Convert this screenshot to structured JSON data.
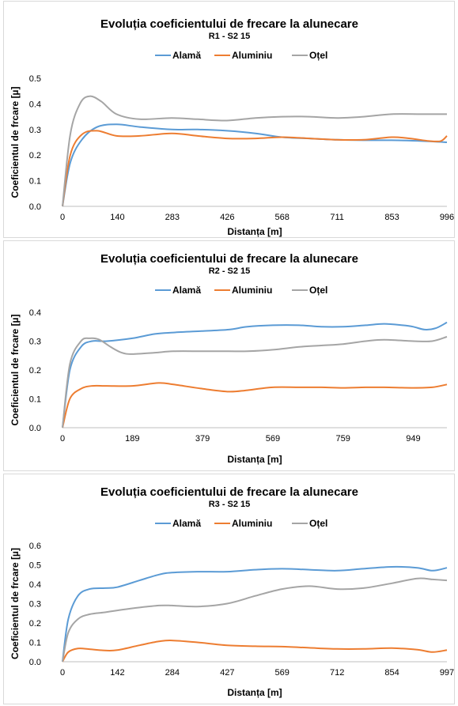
{
  "colors": {
    "alama": "#5b9bd5",
    "aluminiu": "#ed7d31",
    "otel": "#a5a5a5"
  },
  "chart_data": [
    {
      "type": "line",
      "title": "Evoluția coeficientului de frecare la alunecare",
      "subtitle": "R1 - S2 15",
      "xlabel": "Distanța  [m]",
      "ylabel": "Coeficientul de frcare [µ]",
      "xlim": [
        0,
        996
      ],
      "ylim": [
        0,
        0.5
      ],
      "xticks": [
        "0",
        "140",
        "283",
        "426",
        "568",
        "711",
        "853",
        "996"
      ],
      "yticks": [
        "0.0",
        "0.1",
        "0.2",
        "0.3",
        "0.4",
        "0.5"
      ],
      "legend": "top",
      "series": [
        {
          "name": "Alamă",
          "color": "#5b9bd5",
          "x": [
            0,
            20,
            50,
            90,
            140,
            200,
            283,
            350,
            426,
            500,
            568,
            640,
            711,
            780,
            853,
            930,
            996
          ],
          "y": [
            0.0,
            0.17,
            0.26,
            0.31,
            0.32,
            0.31,
            0.3,
            0.3,
            0.295,
            0.285,
            0.27,
            0.265,
            0.26,
            0.258,
            0.258,
            0.255,
            0.25
          ]
        },
        {
          "name": "Aluminiu",
          "color": "#ed7d31",
          "x": [
            0,
            20,
            50,
            90,
            140,
            200,
            283,
            350,
            426,
            500,
            568,
            640,
            711,
            780,
            853,
            900,
            950,
            980,
            996
          ],
          "y": [
            0.0,
            0.2,
            0.28,
            0.295,
            0.275,
            0.275,
            0.285,
            0.275,
            0.265,
            0.265,
            0.27,
            0.265,
            0.26,
            0.26,
            0.27,
            0.265,
            0.255,
            0.255,
            0.275
          ]
        },
        {
          "name": "Oțel",
          "color": "#a5a5a5",
          "x": [
            0,
            20,
            45,
            70,
            100,
            140,
            200,
            283,
            350,
            426,
            500,
            568,
            640,
            711,
            780,
            853,
            930,
            996
          ],
          "y": [
            0.0,
            0.28,
            0.4,
            0.43,
            0.41,
            0.36,
            0.34,
            0.345,
            0.34,
            0.335,
            0.345,
            0.35,
            0.35,
            0.345,
            0.35,
            0.36,
            0.36,
            0.36
          ]
        }
      ]
    },
    {
      "type": "line",
      "title": "Evoluția coeficientului de frecare la alunecare",
      "subtitle": "R2 - S2 15",
      "xlabel": "Distanța  [m]",
      "ylabel": "Coeficientul de frcare [µ]",
      "xlim": [
        0,
        1040
      ],
      "ylim": [
        0,
        0.4
      ],
      "xticks_at": [
        0,
        189,
        379,
        569,
        759,
        949
      ],
      "xticks": [
        "0",
        "189",
        "379",
        "569",
        "759",
        "949"
      ],
      "yticks": [
        "0.0",
        "0.1",
        "0.2",
        "0.3",
        "0.4"
      ],
      "legend": "top",
      "series": [
        {
          "name": "Alamă",
          "color": "#5b9bd5",
          "x": [
            0,
            20,
            50,
            80,
            120,
            189,
            250,
            300,
            379,
            450,
            500,
            569,
            640,
            700,
            759,
            820,
            870,
            920,
            949,
            980,
            1010,
            1040
          ],
          "y": [
            0.0,
            0.2,
            0.28,
            0.3,
            0.3,
            0.31,
            0.325,
            0.33,
            0.335,
            0.34,
            0.35,
            0.355,
            0.355,
            0.35,
            0.35,
            0.355,
            0.36,
            0.355,
            0.35,
            0.34,
            0.345,
            0.365
          ]
        },
        {
          "name": "Aluminiu",
          "color": "#ed7d31",
          "x": [
            0,
            20,
            50,
            80,
            120,
            189,
            260,
            300,
            379,
            450,
            500,
            569,
            640,
            700,
            759,
            820,
            870,
            949,
            1000,
            1040
          ],
          "y": [
            0.0,
            0.1,
            0.135,
            0.145,
            0.145,
            0.145,
            0.155,
            0.15,
            0.135,
            0.125,
            0.13,
            0.14,
            0.14,
            0.14,
            0.138,
            0.14,
            0.14,
            0.138,
            0.14,
            0.15
          ]
        },
        {
          "name": "Oțel",
          "color": "#a5a5a5",
          "x": [
            0,
            20,
            50,
            75,
            100,
            130,
            160,
            189,
            250,
            300,
            379,
            450,
            500,
            569,
            640,
            700,
            759,
            820,
            870,
            949,
            1000,
            1040
          ],
          "y": [
            0.0,
            0.22,
            0.3,
            0.31,
            0.305,
            0.28,
            0.26,
            0.255,
            0.26,
            0.265,
            0.265,
            0.265,
            0.265,
            0.27,
            0.28,
            0.285,
            0.29,
            0.3,
            0.305,
            0.3,
            0.3,
            0.315
          ]
        }
      ]
    },
    {
      "type": "line",
      "title": "Evoluția coeficientului de frecare la alunecare",
      "subtitle": "R3 - S2 15",
      "xlabel": "Distanța  [m]",
      "ylabel": "Coeficientul de frcare [µ]",
      "xlim": [
        0,
        997
      ],
      "ylim": [
        0,
        0.6
      ],
      "xticks": [
        "0",
        "142",
        "284",
        "427",
        "569",
        "712",
        "854",
        "997"
      ],
      "yticks": [
        "0.0",
        "0.1",
        "0.2",
        "0.3",
        "0.4",
        "0.5",
        "0.6"
      ],
      "legend": "top",
      "series": [
        {
          "name": "Alamă",
          "color": "#5b9bd5",
          "x": [
            0,
            15,
            40,
            70,
            110,
            142,
            200,
            250,
            284,
            350,
            427,
            500,
            569,
            640,
            712,
            780,
            854,
            920,
            960,
            997
          ],
          "y": [
            0.0,
            0.22,
            0.34,
            0.375,
            0.38,
            0.385,
            0.42,
            0.45,
            0.46,
            0.465,
            0.465,
            0.475,
            0.48,
            0.475,
            0.47,
            0.48,
            0.49,
            0.485,
            0.47,
            0.485
          ]
        },
        {
          "name": "Aluminiu",
          "color": "#ed7d31",
          "x": [
            0,
            15,
            40,
            70,
            110,
            142,
            200,
            250,
            284,
            350,
            427,
            500,
            569,
            640,
            712,
            780,
            854,
            920,
            960,
            997
          ],
          "y": [
            0.0,
            0.05,
            0.068,
            0.065,
            0.058,
            0.06,
            0.085,
            0.105,
            0.11,
            0.1,
            0.085,
            0.08,
            0.078,
            0.072,
            0.066,
            0.066,
            0.07,
            0.062,
            0.05,
            0.06
          ]
        },
        {
          "name": "Oțel",
          "color": "#a5a5a5",
          "x": [
            0,
            15,
            40,
            70,
            110,
            142,
            200,
            250,
            284,
            350,
            427,
            500,
            569,
            640,
            712,
            780,
            854,
            920,
            960,
            997
          ],
          "y": [
            0.0,
            0.15,
            0.22,
            0.245,
            0.255,
            0.265,
            0.28,
            0.29,
            0.29,
            0.285,
            0.3,
            0.34,
            0.375,
            0.39,
            0.375,
            0.38,
            0.405,
            0.43,
            0.425,
            0.42
          ]
        }
      ]
    }
  ]
}
